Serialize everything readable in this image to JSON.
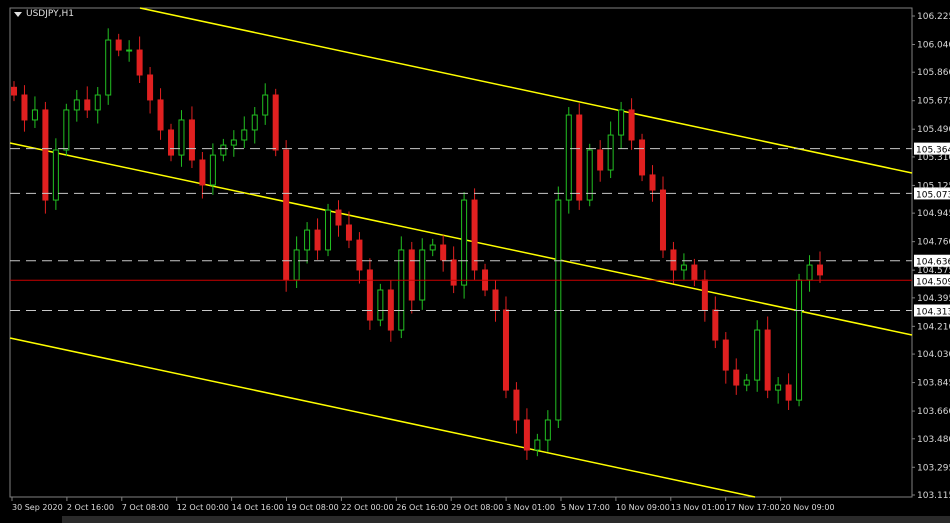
{
  "symbol_label": "USDJPY,H1",
  "colors": {
    "background": "#000000",
    "bull": "#22c022",
    "bear": "#e02020",
    "trendline": "#ffff00",
    "hline": "#c8c8c8",
    "bid_line": "#cc0000",
    "axis_text": "#d8d8d8"
  },
  "chart_data": {
    "type": "candlestick",
    "title": "USDJPY,H1",
    "ylim": [
      103.115,
      106.225
    ],
    "grid": false,
    "y_ticks": [
      "106.225",
      "106.040",
      "105.860",
      "105.675",
      "105.490",
      "105.310",
      "105.125",
      "104.945",
      "104.760",
      "104.575",
      "104.395",
      "104.210",
      "104.030",
      "103.845",
      "103.660",
      "103.480",
      "103.295",
      "103.115"
    ],
    "x_ticks": [
      "30 Sep 2020",
      "2 Oct 16:00",
      "7 Oct 08:00",
      "12 Oct 00:00",
      "14 Oct 16:00",
      "19 Oct 08:00",
      "22 Oct 00:00",
      "26 Oct 16:00",
      "29 Oct 08:00",
      "3 Nov 01:00",
      "5 Nov 17:00",
      "10 Nov 09:00",
      "13 Nov 01:00",
      "17 Nov 17:00",
      "20 Nov 09:00"
    ],
    "closes": [
      105.712,
      105.55,
      105.615,
      105.03,
      105.355,
      105.615,
      105.68,
      105.615,
      105.712,
      106.069,
      106.004,
      106.004,
      105.842,
      105.68,
      105.485,
      105.322,
      105.55,
      105.29,
      105.128,
      105.322,
      105.387,
      105.42,
      105.485,
      105.582,
      105.712,
      105.355,
      104.511,
      104.706,
      104.835,
      104.706,
      104.965,
      104.868,
      104.77,
      104.576,
      104.251,
      104.446,
      104.186,
      104.706,
      104.381,
      104.706,
      104.738,
      104.641,
      104.478,
      105.03,
      104.576,
      104.446,
      104.316,
      103.796,
      103.602,
      103.407,
      103.472,
      103.602,
      105.03,
      105.582,
      105.03,
      105.355,
      105.225,
      105.452,
      105.615,
      105.42,
      105.193,
      105.095,
      104.706,
      104.576,
      104.608,
      104.511,
      104.316,
      104.121,
      103.926,
      103.829,
      103.861,
      104.186,
      103.796,
      103.829,
      103.731,
      104.511,
      104.608,
      104.544
    ],
    "horizontal_levels": [
      "105.364",
      "105.073",
      "104.636",
      "104.313"
    ],
    "bid_price": "104.509"
  }
}
